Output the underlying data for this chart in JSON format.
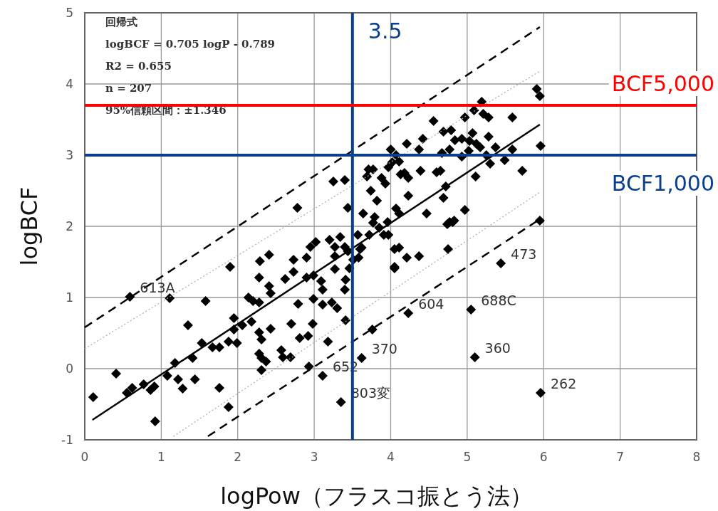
{
  "chart_data": {
    "type": "scatter",
    "xlabel": "logPow（フラスコ振とう法）",
    "ylabel": "logBCF",
    "xlim": [
      0,
      8
    ],
    "ylim": [
      -1,
      5
    ],
    "xticks": [
      0,
      1,
      2,
      3,
      4,
      5,
      6,
      7,
      8
    ],
    "yticks": [
      -1,
      0,
      1,
      2,
      3,
      4,
      5
    ],
    "grid": true,
    "marker": "diamond",
    "series": [
      {
        "color": "#000000",
        "x": [
          0.11,
          0.41,
          0.55,
          0.62,
          0.59,
          0.77,
          0.86,
          0.91,
          0.92,
          1.11,
          1.08,
          1.22,
          1.28,
          1.35,
          1.41,
          1.44,
          1.18,
          1.58,
          1.9,
          1.76,
          1.88,
          1.53,
          1.67,
          1.76,
          1.88,
          1.99,
          1.95,
          1.95,
          2.06,
          2.14,
          2.2,
          2.28,
          2.18,
          2.28,
          2.31,
          2.28,
          2.31,
          2.37,
          2.31,
          2.43,
          2.28,
          2.41,
          2.43,
          2.29,
          2.41,
          2.57,
          2.59,
          2.69,
          2.7,
          2.73,
          2.73,
          2.62,
          2.79,
          2.81,
          2.92,
          2.98,
          2.93,
          3.11,
          3.18,
          2.9,
          2.99,
          2.9,
          2.95,
          3.02,
          3.09,
          3.11,
          2.99,
          3.11,
          3.23,
          3.3,
          3.41,
          3.2,
          3.27,
          3.27,
          3.27,
          3.34,
          3.4,
          3.44,
          3.46,
          3.41,
          3.4,
          3.35,
          3.62,
          3.58,
          3.62,
          3.76,
          3.91,
          4.05,
          3.77,
          4.05,
          3.71,
          3.25,
          3.4,
          2.78,
          3.44,
          5.91,
          5.95,
          5.19,
          5.09,
          4.97,
          5.21,
          5.28,
          5.59,
          4.56,
          4.69,
          4.79,
          5.07,
          5.28,
          4.42,
          4.21,
          4.84,
          4.93,
          5.03,
          5.12,
          4.37,
          4.77,
          5.02,
          5.17,
          5.37,
          5.59,
          5.96,
          4.67,
          4.93,
          5.25,
          5.49,
          5.3,
          4.11,
          4.18,
          4.6,
          4.65,
          4.39,
          4.23,
          5.72,
          5.11,
          4.23,
          4.72,
          4.69,
          4.97,
          4.47,
          4.07,
          4.11,
          4.77,
          4.83,
          3.96,
          5.95,
          4.11,
          4.21,
          4.37,
          4.05,
          4.75,
          4.74,
          4.81,
          5.44,
          4.23,
          5.05,
          5.1,
          5.96,
          3.69,
          3.77,
          3.74,
          3.82,
          3.88,
          3.93,
          3.97,
          4.02,
          4.07,
          4.0,
          4.13,
          3.79,
          3.85,
          3.97,
          3.72,
          3.57,
          3.6,
          3.51,
          3.64
        ],
        "values": [
          -0.4,
          -0.07,
          -0.34,
          -0.27,
          1.01,
          -0.22,
          -0.3,
          -0.25,
          -0.74,
          0.99,
          -0.1,
          -0.15,
          -0.28,
          0.61,
          0.15,
          -0.15,
          0.08,
          0.95,
          1.43,
          -0.27,
          -0.54,
          0.36,
          0.3,
          0.3,
          0.38,
          0.36,
          0.55,
          0.71,
          0.61,
          1.0,
          0.95,
          0.93,
          0.66,
          0.51,
          0.41,
          0.21,
          0.15,
          0.1,
          -0.02,
          0.56,
          1.28,
          1.16,
          1.06,
          1.51,
          1.6,
          0.26,
          0.16,
          0.16,
          0.63,
          1.53,
          1.36,
          1.26,
          0.91,
          0.43,
          0.46,
          0.63,
          0.03,
          -0.1,
          0.38,
          1.28,
          1.31,
          1.56,
          1.71,
          1.78,
          1.23,
          1.11,
          0.98,
          0.9,
          0.93,
          0.85,
          0.68,
          1.81,
          1.71,
          1.58,
          1.4,
          1.85,
          1.71,
          1.65,
          1.41,
          1.25,
          1.11,
          -0.47,
          0.15,
          1.56,
          1.7,
          0.55,
          1.88,
          1.43,
          2.05,
          1.68,
          2.8,
          2.63,
          2.65,
          2.26,
          2.26,
          3.93,
          3.83,
          3.75,
          3.63,
          3.53,
          3.58,
          3.53,
          3.53,
          3.48,
          3.33,
          3.35,
          3.31,
          3.26,
          3.23,
          3.16,
          3.21,
          3.23,
          3.2,
          3.16,
          3.08,
          3.08,
          3.06,
          3.11,
          3.11,
          3.08,
          3.13,
          3.03,
          2.98,
          3.0,
          2.93,
          2.88,
          2.91,
          2.75,
          2.76,
          2.78,
          2.78,
          2.68,
          2.78,
          2.7,
          2.43,
          2.56,
          2.4,
          2.23,
          2.18,
          2.25,
          2.18,
          2.06,
          2.08,
          2.06,
          2.08,
          1.7,
          1.56,
          1.58,
          1.41,
          1.68,
          2.03,
          2.06,
          1.48,
          0.78,
          0.83,
          0.16,
          -0.34,
          2.7,
          2.8,
          2.5,
          2.36,
          2.68,
          2.6,
          2.83,
          2.9,
          3.0,
          3.08,
          2.73,
          2.13,
          1.98,
          1.88,
          1.88,
          1.88,
          1.68,
          1.53,
          2.18
        ]
      },
      {
        "type": "line",
        "color": "#000000",
        "marker": "none",
        "line_style": "solid",
        "x": [
          0.1,
          5.95
        ],
        "values": [
          -0.72,
          3.43
        ]
      },
      {
        "type": "line",
        "color": "#000000",
        "marker": "none",
        "line_style": "dashed",
        "x": [
          0,
          5.95
        ],
        "values": [
          0.58,
          4.8
        ]
      },
      {
        "type": "line",
        "color": "#000000",
        "marker": "none",
        "line_style": "dashed",
        "x": [
          1.61,
          5.95
        ],
        "values": [
          -0.95,
          2.1
        ]
      },
      {
        "type": "line",
        "color": "#aaaaaa",
        "marker": "none",
        "line_style": "dotted",
        "x": [
          0,
          5.95
        ],
        "values": [
          0.28,
          4.18
        ]
      },
      {
        "type": "line",
        "color": "#aaaaaa",
        "marker": "none",
        "line_style": "dotted",
        "x": [
          1.16,
          5.95
        ],
        "values": [
          -0.95,
          2.48
        ]
      }
    ],
    "ref_lines": [
      {
        "axis": "x",
        "value": 3.5,
        "label": "3.5",
        "color": "#0a3f8f"
      },
      {
        "axis": "y",
        "value": 3.7,
        "label": "BCF5,000",
        "color": "#ff0000"
      },
      {
        "axis": "y",
        "value": 3.0,
        "label": "BCF1,000",
        "color": "#0a3f8f"
      }
    ],
    "annotations": [
      "回帰式",
      "logBCF = 0.705 logP - 0.789",
      "R2 = 0.655",
      "n = 207",
      "95%信頼区間：±1.346",
      {
        "text": "613A",
        "x": 0.59,
        "y": 1.01
      },
      {
        "text": "473",
        "x": 5.44,
        "y": 1.48
      },
      {
        "text": "688C",
        "x": 5.05,
        "y": 0.83
      },
      {
        "text": "604",
        "x": 4.23,
        "y": 0.78
      },
      {
        "text": "360",
        "x": 5.1,
        "y": 0.16
      },
      {
        "text": "262",
        "x": 5.96,
        "y": -0.34
      },
      {
        "text": "370",
        "x": 3.62,
        "y": 0.15
      },
      {
        "text": "652",
        "x": 3.11,
        "y": -0.1
      },
      {
        "text": "803変",
        "x": 3.35,
        "y": -0.47
      }
    ]
  }
}
